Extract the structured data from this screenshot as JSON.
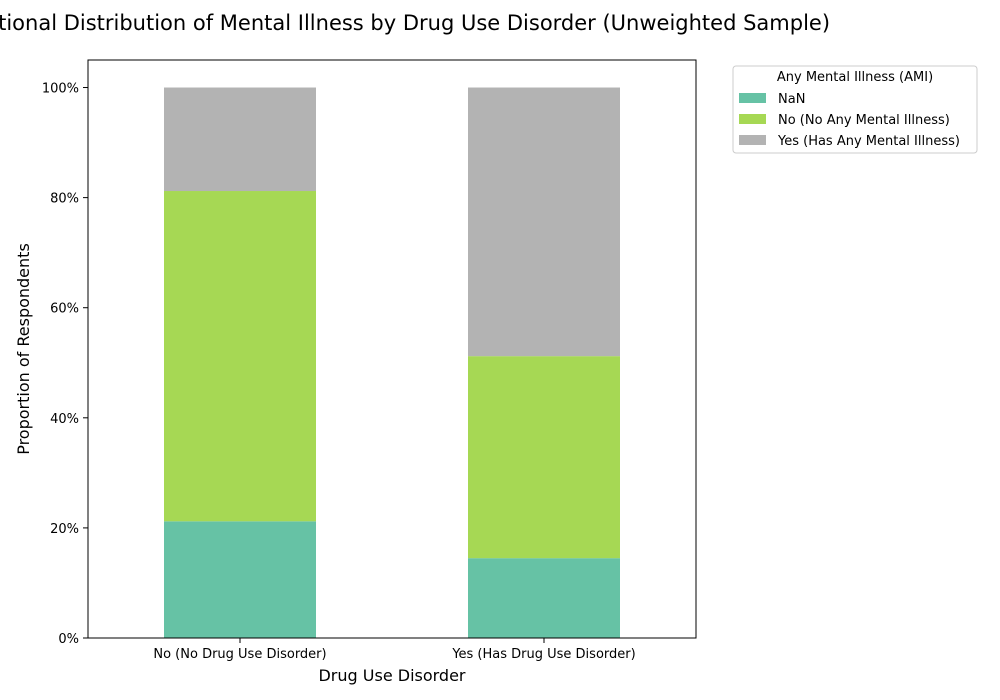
{
  "chart_data": {
    "type": "bar",
    "stacked": true,
    "title": "Proportional Distribution of Mental Illness by Drug Use Disorder (Unweighted Sample)",
    "xlabel": "Drug Use Disorder",
    "ylabel": "Proportion of Respondents",
    "categories": [
      "No (No Drug Use Disorder)",
      "Yes (Has Drug Use Disorder)"
    ],
    "ylim": [
      0,
      1.05
    ],
    "yticks": [
      0,
      0.2,
      0.4,
      0.6,
      0.8,
      1.0
    ],
    "ytick_labels": [
      "0%",
      "20%",
      "40%",
      "60%",
      "80%",
      "100%"
    ],
    "legend_title": "Any Mental Illness (AMI)",
    "legend_position": "outside-right",
    "grid": false,
    "series": [
      {
        "name": "NaN",
        "color": "#66c2a5",
        "values": [
          0.212,
          0.145
        ]
      },
      {
        "name": "No (No Any Mental Illness)",
        "color": "#a6d854",
        "values": [
          0.6,
          0.367
        ]
      },
      {
        "name": "Yes (Has Any Mental Illness)",
        "color": "#b3b3b3",
        "values": [
          0.188,
          0.488
        ]
      }
    ]
  }
}
